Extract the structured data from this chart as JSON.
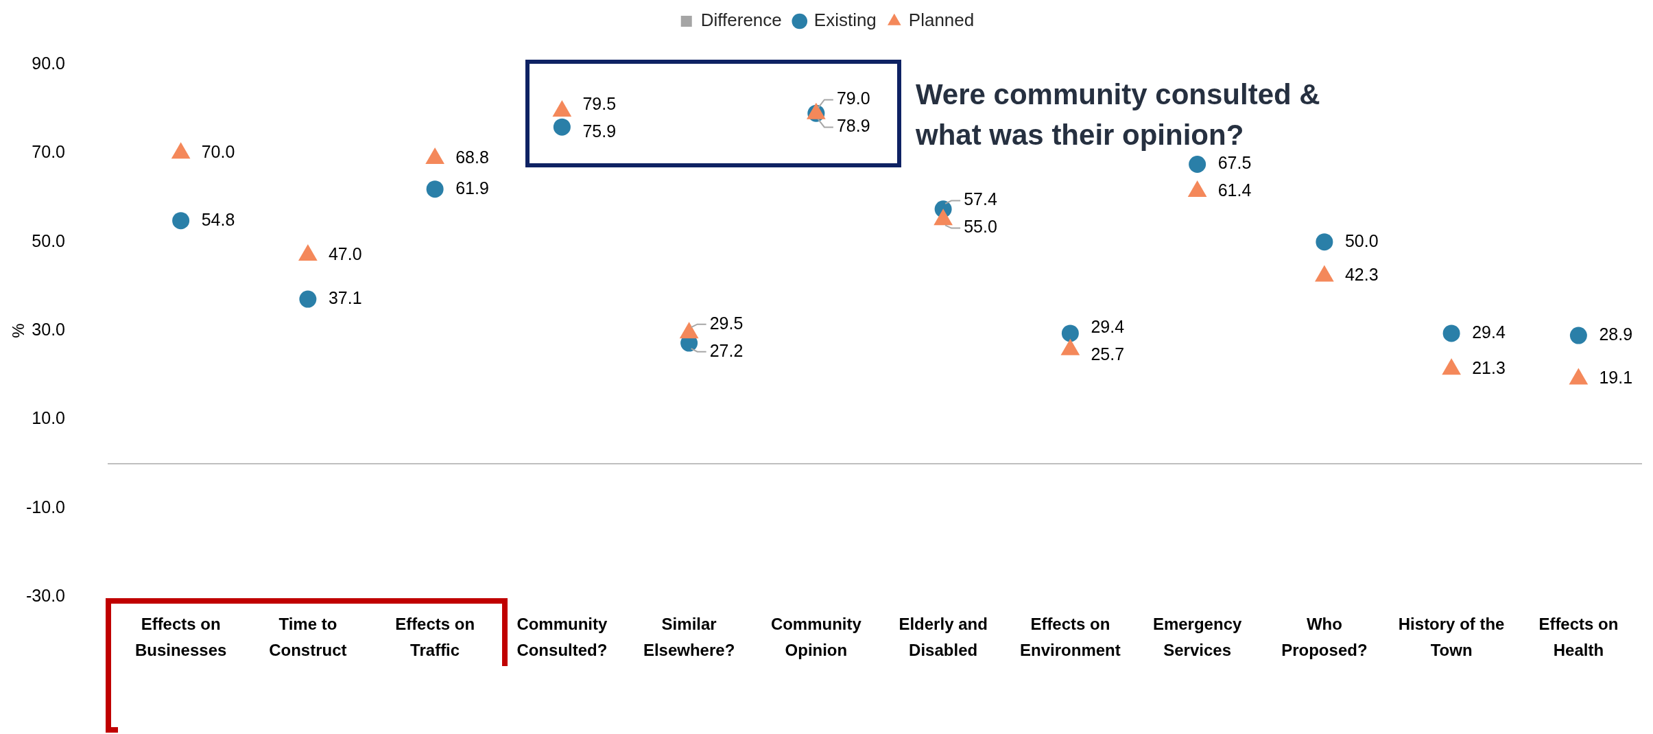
{
  "chart_data": {
    "type": "scatter",
    "categories": [
      "Effects on Businesses",
      "Time to Construct",
      "Effects on Traffic",
      "Community Consulted?",
      "Similar Elsewhere?",
      "Community Opinion",
      "Elderly and Disabled",
      "Effects on Environment",
      "Emergency Services",
      "Who Proposed?",
      "History of the Town",
      "Effects on Health"
    ],
    "series": [
      {
        "name": "Difference",
        "type": "bar",
        "color": "#a5a5a5",
        "values": [
          null,
          null,
          null,
          null,
          null,
          null,
          null,
          null,
          null,
          null,
          null,
          null
        ]
      },
      {
        "name": "Existing",
        "color": "#2a7fa8",
        "marker": "circle",
        "values": [
          54.8,
          37.1,
          61.9,
          75.9,
          27.2,
          79.0,
          57.4,
          29.4,
          67.5,
          50.0,
          29.4,
          28.9
        ],
        "value_labels": [
          "54.8",
          "37.1",
          "61.9",
          "75.9",
          "27.2",
          "79.0",
          "57.4",
          "29.4",
          "67.5",
          "50.0",
          "29.4",
          "28.9"
        ]
      },
      {
        "name": "Planned",
        "color": "#f4885a",
        "marker": "triangle",
        "values": [
          70.0,
          47.0,
          68.8,
          79.5,
          29.5,
          78.9,
          55.0,
          25.7,
          61.4,
          42.3,
          21.3,
          19.1
        ],
        "value_labels": [
          "70.0",
          "47.0",
          "68.8",
          "79.5",
          "29.5",
          "78.9",
          "55.0",
          "25.7",
          "61.4",
          "42.3",
          "21.3",
          "19.1"
        ]
      }
    ],
    "ylabel": "%",
    "ylim": [
      -30,
      90
    ],
    "yticks": [
      {
        "value": -30,
        "label": "-30.0"
      },
      {
        "value": -10,
        "label": "-10.0"
      },
      {
        "value": 10,
        "label": "10.0"
      },
      {
        "value": 30,
        "label": "30.0"
      },
      {
        "value": 50,
        "label": "50.0"
      },
      {
        "value": 70,
        "label": "70.0"
      },
      {
        "value": 90,
        "label": "90.0"
      }
    ],
    "grid": false,
    "legend": "top",
    "ref_lines": [
      {
        "axis": "y",
        "value": 0,
        "color": "#bfbfbf"
      }
    ],
    "annotations": [
      "Were community consulted & what was their opinion?"
    ]
  }
}
